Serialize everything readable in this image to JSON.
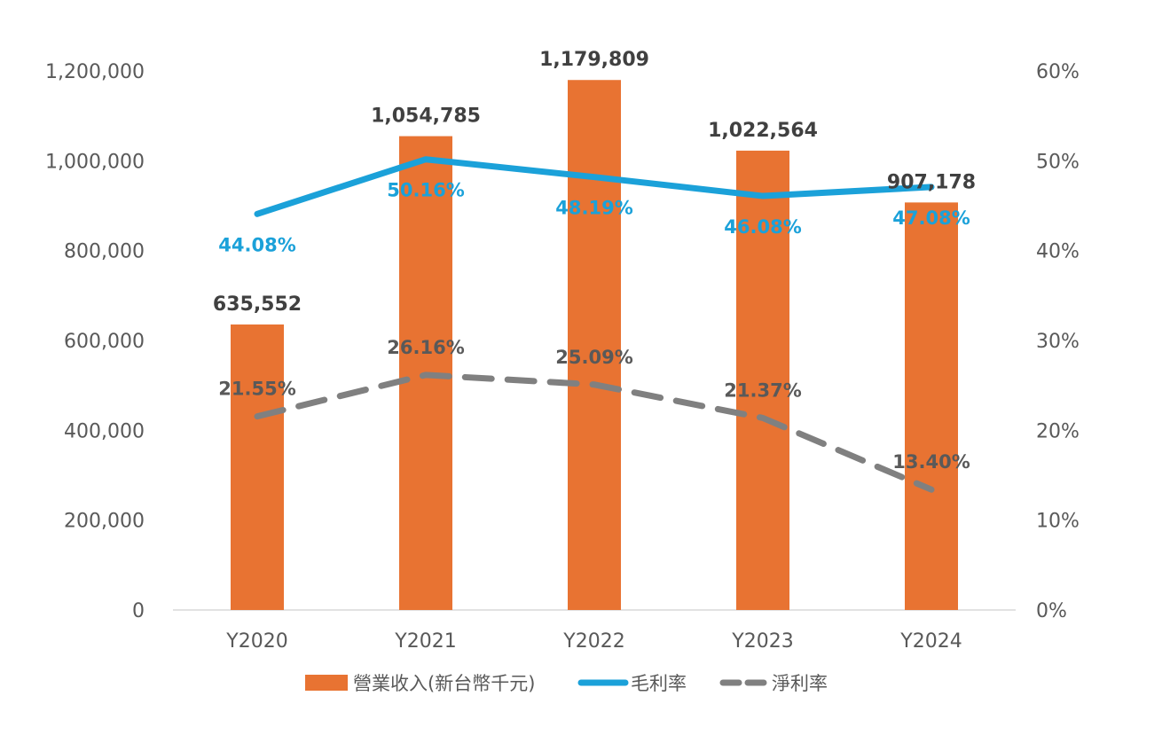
{
  "chart_data": {
    "type": "bar+line",
    "categories": [
      "Y2020",
      "Y2021",
      "Y2022",
      "Y2023",
      "Y2024"
    ],
    "series": [
      {
        "name": "營業收入(新台幣千元)",
        "type": "bar",
        "axis": "left",
        "values": [
          635552,
          1054785,
          1179809,
          1022564,
          907178
        ],
        "labels": [
          "635,552",
          "1,054,785",
          "1,179,809",
          "1,022,564",
          "907,178"
        ]
      },
      {
        "name": "毛利率",
        "type": "line",
        "axis": "right",
        "values": [
          44.08,
          50.16,
          48.19,
          46.08,
          47.08
        ],
        "labels": [
          "44.08%",
          "50.16%",
          "48.19%",
          "46.08%",
          "47.08%"
        ]
      },
      {
        "name": "淨利率",
        "type": "line-dashed",
        "axis": "right",
        "values": [
          21.55,
          26.16,
          25.09,
          21.37,
          13.4
        ],
        "labels": [
          "21.55%",
          "26.16%",
          "25.09%",
          "21.37%",
          "13.40%"
        ]
      }
    ],
    "y_left": {
      "range": [
        0,
        1200000
      ],
      "ticks": [
        "0",
        "200,000",
        "400,000",
        "600,000",
        "800,000",
        "1,000,000",
        "1,200,000"
      ]
    },
    "y_right": {
      "range": [
        0,
        60
      ],
      "ticks": [
        "0%",
        "10%",
        "20%",
        "30%",
        "40%",
        "50%",
        "60%"
      ]
    },
    "grid": false,
    "legend_position": "bottom"
  },
  "colors": {
    "bar": "#E87332",
    "gross_margin": "#1BA1D9",
    "net_margin": "#808080",
    "gross_margin_label": "#1BA1D9",
    "net_margin_label": "#595959",
    "axis_line": "#D9D9D9"
  }
}
